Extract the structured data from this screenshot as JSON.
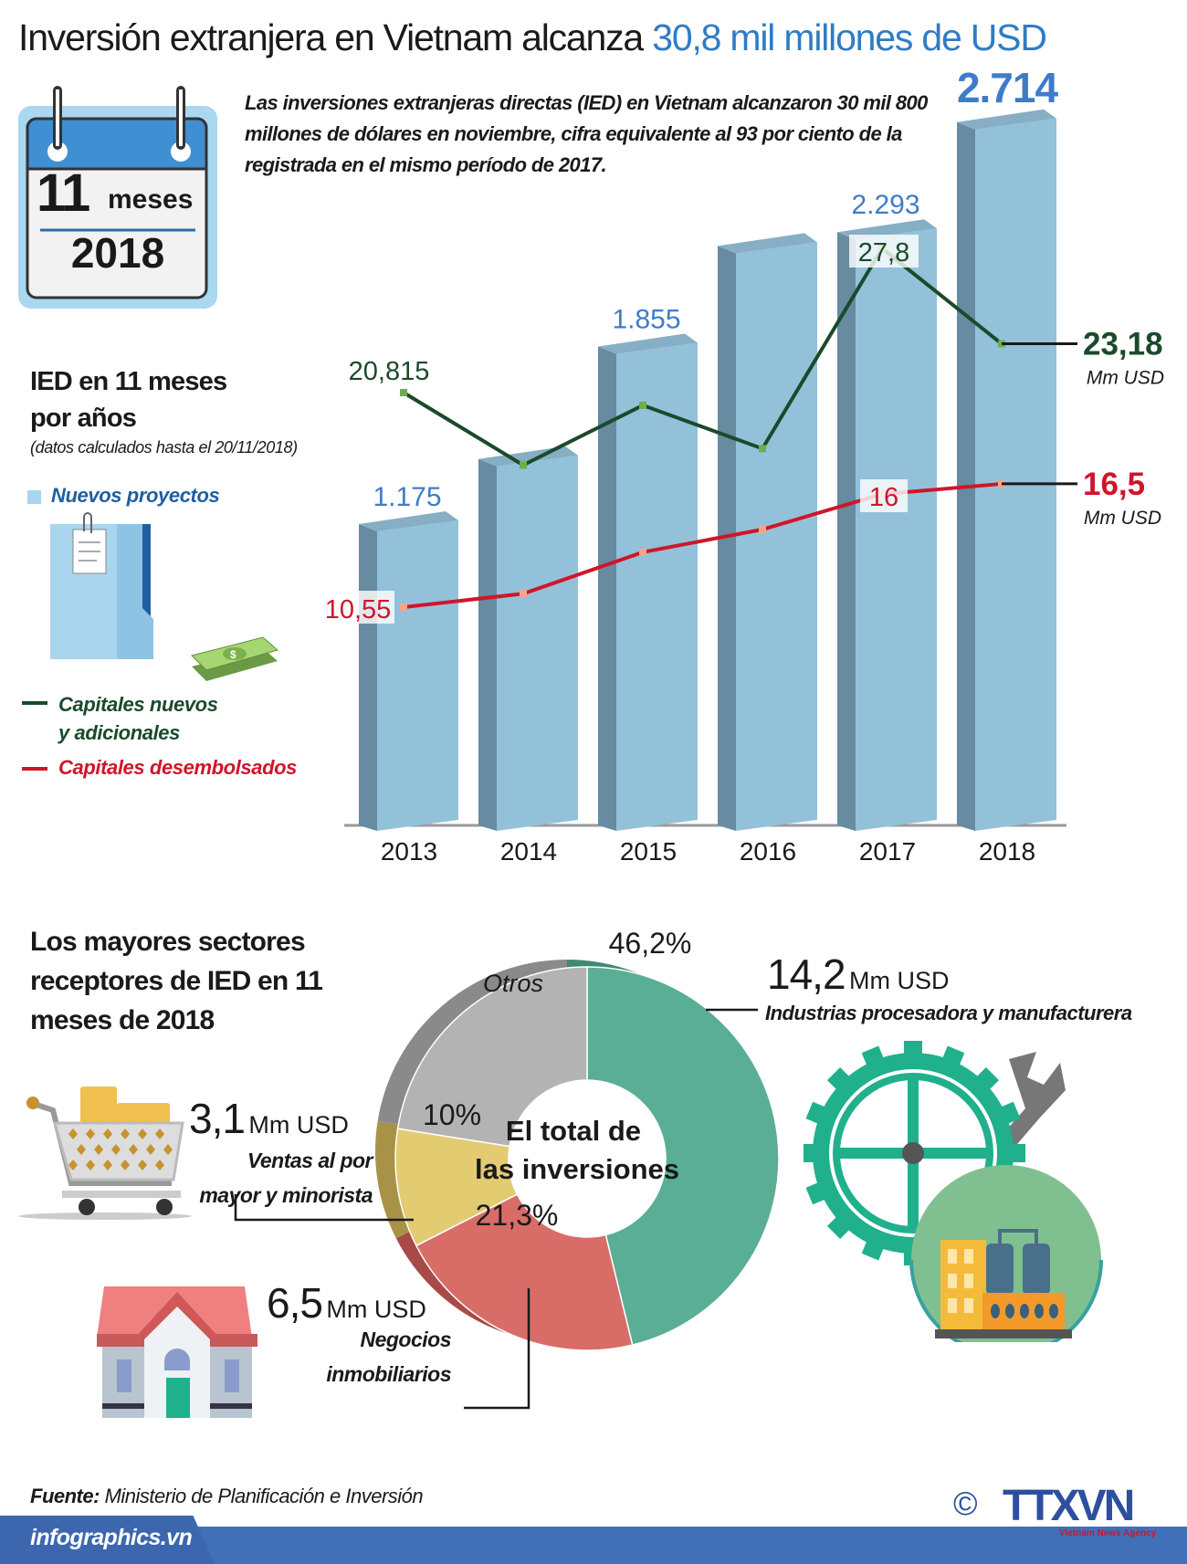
{
  "title": {
    "main": "Inversión extranjera en Vietnam alcanza ",
    "highlight": "30,8 mil millones de USD"
  },
  "calendar": {
    "number": "11",
    "unit": "meses",
    "year": "2018"
  },
  "intro": "Las inversiones extranjeras directas (IED) en Vietnam alcanzaron 30 mil 800 millones de dólares en noviembre, cifra equivalente al 93 por ciento de la registrada en el mismo período de 2017.",
  "legend": {
    "title_line1": "IED en 11 meses",
    "title_line2": "por años",
    "note": "(datos calculados hasta el 20/11/2018)",
    "bars": "Nuevos proyectos",
    "green_line1": "Capitales nuevos",
    "green_line2": "y adicionales",
    "red": "Capitales desembolsados"
  },
  "colors": {
    "bar": "#93c1da",
    "green": "#1b4a2b",
    "red": "#d0152b",
    "blue_label": "#3f7cc8",
    "donut_green": "#5aae95",
    "donut_red": "#d86d68",
    "donut_yellow": "#e3cb72",
    "donut_gray": "#b3b3b3"
  },
  "chart_data": [
    {
      "type": "bar",
      "categories": [
        "2013",
        "2014",
        "2015",
        "2016",
        "2017",
        "2018"
      ],
      "series": [
        {
          "name": "Nuevos proyectos",
          "values": [
            1175,
            1424,
            1855,
            2240,
            2293,
            2714
          ],
          "labels": [
            "1.175",
            null,
            "1.855",
            null,
            "2.293",
            "2.714"
          ]
        },
        {
          "name": "Capitales nuevos y adicionales",
          "type": "line",
          "unit": "Mm USD",
          "values": [
            20.815,
            17.3,
            20.2,
            18.1,
            27.8,
            23.18
          ],
          "labels": [
            "20,815",
            null,
            null,
            null,
            "27,8",
            "23,18"
          ]
        },
        {
          "name": "Capitales desembolsados",
          "type": "line",
          "unit": "Mm USD",
          "values": [
            10.55,
            11.2,
            13.2,
            14.3,
            16,
            16.5
          ],
          "labels": [
            "10,55",
            null,
            null,
            null,
            "16",
            "16,5"
          ]
        }
      ],
      "end_unit": "Mm USD",
      "grid": false
    },
    {
      "type": "pie",
      "title": "El total de las inversiones",
      "center_line1": "El total de",
      "center_line2": "las inversiones",
      "slices": [
        {
          "name": "Industrias procesadora y manufacturera",
          "pct": 46.2,
          "label": "46,2%",
          "value": "14,2",
          "unit": "Mm USD"
        },
        {
          "name": "Negocios inmobiliarios",
          "pct": 21.3,
          "label": "21,3%",
          "value": "6,5",
          "unit": "Mm USD"
        },
        {
          "name": "Ventas al por mayor y minorista",
          "pct": 10,
          "label": "10%",
          "value": "3,1",
          "unit": "Mm USD"
        },
        {
          "name": "Otros",
          "pct": 22.5,
          "label": "Otros"
        }
      ]
    }
  ],
  "sectors": {
    "title_line1": "Los mayores sectores",
    "title_line2": "receptores de IED en 11",
    "title_line3": "meses de 2018",
    "industry": {
      "value": "14,2",
      "unit": "Mm USD",
      "name": "Industrias procesadora y manufacturera"
    },
    "retail": {
      "value": "3,1",
      "unit": "Mm USD",
      "name_line1": "Ventas al por",
      "name_line2": "mayor y minorista"
    },
    "realestate": {
      "value": "6,5",
      "unit": "Mm USD",
      "name_line1": "Negocios",
      "name_line2": "inmobiliarios"
    }
  },
  "footer": {
    "source_label": "Fuente:",
    "source": " Ministerio de Planificación e Inversión",
    "site": "infographics.vn",
    "copyright": "©",
    "logo": "TTXVN",
    "logo_sub": "Vietnam News Agency"
  }
}
